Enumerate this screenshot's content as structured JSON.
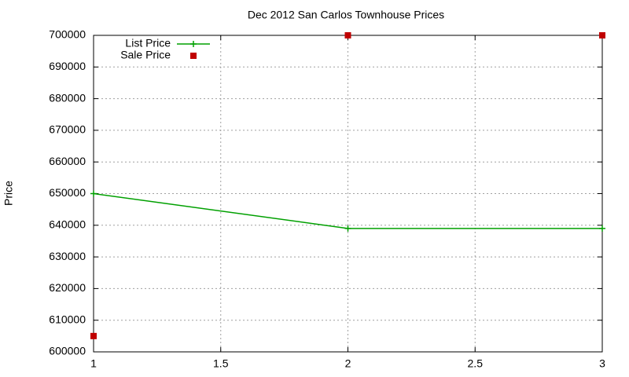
{
  "chart_data": {
    "type": "line",
    "title": "Dec 2012 San Carlos Townhouse Prices",
    "y_label": "Price",
    "x": [
      1,
      2,
      3
    ],
    "series": [
      {
        "name": "List Price",
        "color": "#00a000",
        "style": "linespoints",
        "values": [
          650000,
          639000,
          639000
        ]
      },
      {
        "name": "Sale Price",
        "color": "#c00000",
        "style": "points",
        "values": [
          605000,
          700000,
          700000
        ]
      }
    ],
    "xlim": [
      1,
      3
    ],
    "xticks": [
      1,
      1.5,
      2,
      2.5,
      3
    ],
    "ylim": [
      600000,
      700000
    ],
    "yticks": [
      600000,
      610000,
      620000,
      630000,
      640000,
      650000,
      660000,
      670000,
      680000,
      690000,
      700000
    ],
    "grid": true,
    "legend": "top-left"
  }
}
